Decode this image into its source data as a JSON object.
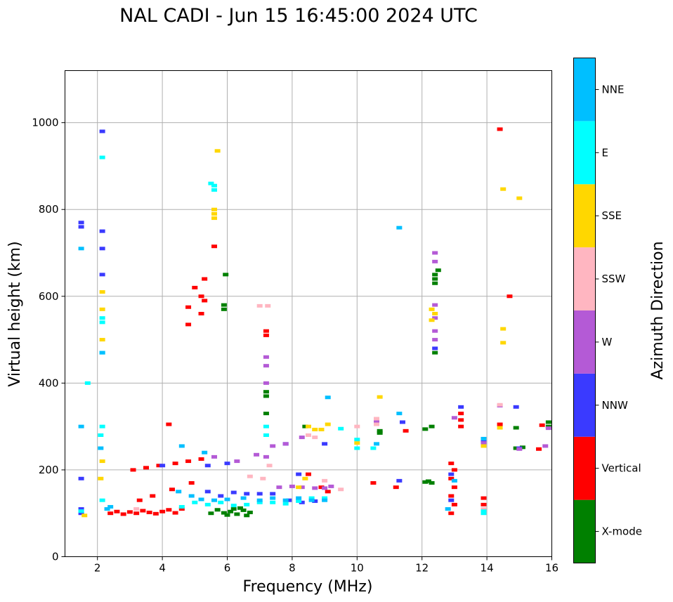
{
  "chart_data": {
    "type": "scatter",
    "title": "NAL CADI - Jun 15 16:45:00 2024 UTC",
    "xlabel": "Frequency (MHz)",
    "ylabel": "Virtual height (km)",
    "xlim": [
      1,
      16
    ],
    "ylim": [
      0,
      1120
    ],
    "xticks": [
      2,
      4,
      6,
      8,
      10,
      12,
      14,
      16
    ],
    "yticks": [
      0,
      200,
      400,
      600,
      800,
      1000
    ],
    "grid": true,
    "colorbar": {
      "label": "Azimuth Direction",
      "categories": [
        {
          "name": "X-mode",
          "color": "#008000"
        },
        {
          "name": "Vertical",
          "color": "#ff0000"
        },
        {
          "name": "NNW",
          "color": "#3a3aff"
        },
        {
          "name": "W",
          "color": "#b45ad6"
        },
        {
          "name": "SSW",
          "color": "#ffb6c1"
        },
        {
          "name": "SSE",
          "color": "#ffd700"
        },
        {
          "name": "E",
          "color": "#00ffff"
        },
        {
          "name": "NNE",
          "color": "#00bfff"
        }
      ]
    },
    "series": [
      {
        "name": "X-mode",
        "points": [
          [
            5.9,
            101
          ],
          [
            6.1,
            104
          ],
          [
            6.3,
            98
          ],
          [
            6.5,
            107
          ],
          [
            6.7,
            102
          ],
          [
            6.2,
            110
          ],
          [
            6.0,
            96
          ],
          [
            6.4,
            112
          ],
          [
            5.7,
            108
          ],
          [
            5.5,
            100
          ],
          [
            6.6,
            95
          ],
          [
            12.1,
            172
          ],
          [
            12.2,
            174
          ],
          [
            12.3,
            170
          ],
          [
            12.1,
            294
          ],
          [
            12.3,
            300
          ],
          [
            12.4,
            630
          ],
          [
            12.4,
            640
          ],
          [
            12.4,
            650
          ],
          [
            12.5,
            660
          ],
          [
            12.4,
            470
          ],
          [
            15.9,
            300
          ],
          [
            15.9,
            310
          ],
          [
            14.9,
            297
          ],
          [
            14.9,
            250
          ],
          [
            15.1,
            252
          ],
          [
            5.9,
            570
          ],
          [
            5.9,
            580
          ],
          [
            5.95,
            650
          ],
          [
            7.2,
            380
          ],
          [
            7.2,
            370
          ],
          [
            7.2,
            330
          ],
          [
            8.4,
            300
          ],
          [
            10.7,
            290
          ],
          [
            10.7,
            285
          ]
        ]
      },
      {
        "name": "Vertical",
        "points": [
          [
            2.4,
            100
          ],
          [
            2.6,
            104
          ],
          [
            2.8,
            98
          ],
          [
            3.0,
            103
          ],
          [
            3.2,
            100
          ],
          [
            3.4,
            106
          ],
          [
            3.6,
            102
          ],
          [
            3.8,
            99
          ],
          [
            4.0,
            104
          ],
          [
            4.2,
            108
          ],
          [
            4.4,
            101
          ],
          [
            4.6,
            110
          ],
          [
            3.1,
            200
          ],
          [
            3.5,
            205
          ],
          [
            3.9,
            210
          ],
          [
            4.4,
            215
          ],
          [
            4.8,
            220
          ],
          [
            5.2,
            225
          ],
          [
            3.3,
            130
          ],
          [
            3.7,
            140
          ],
          [
            4.3,
            155
          ],
          [
            4.9,
            170
          ],
          [
            5.2,
            600
          ],
          [
            5.0,
            620
          ],
          [
            4.8,
            575
          ],
          [
            4.8,
            535
          ],
          [
            5.2,
            560
          ],
          [
            5.3,
            590
          ],
          [
            5.3,
            640
          ],
          [
            5.6,
            715
          ],
          [
            7.2,
            510
          ],
          [
            7.2,
            520
          ],
          [
            12.9,
            100
          ],
          [
            13.0,
            120
          ],
          [
            12.9,
            140
          ],
          [
            13.0,
            160
          ],
          [
            12.9,
            180
          ],
          [
            13.0,
            200
          ],
          [
            12.9,
            215
          ],
          [
            13.2,
            300
          ],
          [
            13.2,
            315
          ],
          [
            13.2,
            330
          ],
          [
            14.4,
            305
          ],
          [
            14.4,
            985
          ],
          [
            14.7,
            600
          ],
          [
            13.9,
            135
          ],
          [
            13.9,
            120
          ],
          [
            8.5,
            190
          ],
          [
            8.9,
            160
          ],
          [
            9.1,
            150
          ],
          [
            10.5,
            170
          ],
          [
            11.2,
            160
          ],
          [
            11.5,
            290
          ],
          [
            15.6,
            248
          ],
          [
            15.7,
            303
          ],
          [
            4.2,
            305
          ]
        ]
      },
      {
        "name": "NNW",
        "points": [
          [
            1.5,
            100
          ],
          [
            1.5,
            110
          ],
          [
            1.5,
            180
          ],
          [
            1.5,
            760
          ],
          [
            1.5,
            770
          ],
          [
            2.15,
            650
          ],
          [
            2.15,
            710
          ],
          [
            2.15,
            750
          ],
          [
            2.15,
            980
          ],
          [
            5.4,
            150
          ],
          [
            5.8,
            140
          ],
          [
            6.2,
            148
          ],
          [
            6.6,
            145
          ],
          [
            7.0,
            145
          ],
          [
            7.4,
            145
          ],
          [
            7.9,
            130
          ],
          [
            8.3,
            125
          ],
          [
            8.7,
            128
          ],
          [
            9.0,
            260
          ],
          [
            8.2,
            190
          ],
          [
            7.8,
            260
          ],
          [
            6.0,
            215
          ],
          [
            5.4,
            210
          ],
          [
            4.0,
            210
          ],
          [
            12.4,
            480
          ],
          [
            12.9,
            130
          ],
          [
            12.9,
            190
          ],
          [
            13.2,
            345
          ],
          [
            14.9,
            345
          ],
          [
            15.0,
            250
          ],
          [
            13.9,
            264
          ],
          [
            11.3,
            175
          ],
          [
            11.4,
            310
          ]
        ]
      },
      {
        "name": "W",
        "points": [
          [
            12.4,
            700
          ],
          [
            12.4,
            680
          ],
          [
            12.4,
            580
          ],
          [
            12.4,
            550
          ],
          [
            12.4,
            520
          ],
          [
            12.4,
            500
          ],
          [
            7.6,
            160
          ],
          [
            8.0,
            162
          ],
          [
            8.3,
            160
          ],
          [
            8.7,
            158
          ],
          [
            9.0,
            158
          ],
          [
            8.3,
            275
          ],
          [
            7.2,
            230
          ],
          [
            6.3,
            220
          ],
          [
            6.9,
            235
          ],
          [
            5.6,
            230
          ],
          [
            7.4,
            255
          ],
          [
            7.8,
            260
          ],
          [
            7.2,
            460
          ],
          [
            7.2,
            440
          ],
          [
            7.2,
            400
          ],
          [
            14.4,
            348
          ],
          [
            15.8,
            255
          ],
          [
            15.9,
            296
          ],
          [
            15.0,
            248
          ],
          [
            13.9,
            262
          ],
          [
            9.2,
            162
          ],
          [
            10.6,
            310
          ],
          [
            13.0,
            320
          ]
        ]
      },
      {
        "name": "SSW",
        "points": [
          [
            10.6,
            318
          ],
          [
            10.6,
            305
          ],
          [
            10.0,
            300
          ],
          [
            9.0,
            175
          ],
          [
            8.5,
            280
          ],
          [
            8.7,
            275
          ],
          [
            7.3,
            210
          ],
          [
            7.1,
            180
          ],
          [
            6.7,
            185
          ],
          [
            3.2,
            110
          ],
          [
            13.9,
            110
          ],
          [
            14.4,
            350
          ],
          [
            9.5,
            155
          ],
          [
            7.0,
            578
          ],
          [
            7.25,
            578
          ]
        ]
      },
      {
        "name": "SSE",
        "points": [
          [
            8.5,
            300
          ],
          [
            8.7,
            293
          ],
          [
            8.9,
            293
          ],
          [
            9.1,
            305
          ],
          [
            10.0,
            262
          ],
          [
            10.7,
            368
          ],
          [
            8.4,
            180
          ],
          [
            8.2,
            160
          ],
          [
            14.4,
            297
          ],
          [
            14.5,
            525
          ],
          [
            14.5,
            493
          ],
          [
            14.5,
            847
          ],
          [
            15.0,
            826
          ],
          [
            12.3,
            570
          ],
          [
            12.4,
            560
          ],
          [
            12.3,
            545
          ],
          [
            5.6,
            790
          ],
          [
            5.6,
            800
          ],
          [
            5.6,
            780
          ],
          [
            5.7,
            935
          ],
          [
            2.15,
            610
          ],
          [
            2.15,
            570
          ],
          [
            2.15,
            500
          ],
          [
            2.15,
            220
          ],
          [
            2.1,
            180
          ],
          [
            1.6,
            95
          ],
          [
            13.9,
            255
          ]
        ]
      },
      {
        "name": "E",
        "points": [
          [
            2.15,
            920
          ],
          [
            2.15,
            550
          ],
          [
            2.15,
            540
          ],
          [
            2.15,
            470
          ],
          [
            2.15,
            300
          ],
          [
            2.1,
            280
          ],
          [
            2.15,
            130
          ],
          [
            1.5,
            105
          ],
          [
            1.7,
            400
          ],
          [
            5.5,
            860
          ],
          [
            5.6,
            845
          ],
          [
            5.6,
            855
          ],
          [
            4.6,
            115
          ],
          [
            5.0,
            125
          ],
          [
            5.4,
            120
          ],
          [
            5.8,
            125
          ],
          [
            6.2,
            118
          ],
          [
            6.6,
            120
          ],
          [
            7.0,
            125
          ],
          [
            7.4,
            125
          ],
          [
            7.8,
            122
          ],
          [
            8.2,
            128
          ],
          [
            8.6,
            135
          ],
          [
            9.0,
            135
          ],
          [
            10.0,
            270
          ],
          [
            10.0,
            250
          ],
          [
            10.5,
            250
          ],
          [
            13.9,
            105
          ],
          [
            13.9,
            100
          ],
          [
            9.5,
            295
          ],
          [
            7.2,
            300
          ],
          [
            7.2,
            280
          ]
        ]
      },
      {
        "name": "NNE",
        "points": [
          [
            1.5,
            300
          ],
          [
            1.5,
            710
          ],
          [
            2.15,
            470
          ],
          [
            2.1,
            250
          ],
          [
            4.5,
            150
          ],
          [
            4.9,
            140
          ],
          [
            5.2,
            132
          ],
          [
            5.6,
            130
          ],
          [
            6.0,
            132
          ],
          [
            6.5,
            135
          ],
          [
            7.0,
            130
          ],
          [
            7.4,
            135
          ],
          [
            7.8,
            130
          ],
          [
            8.2,
            135
          ],
          [
            8.6,
            130
          ],
          [
            9.0,
            130
          ],
          [
            4.6,
            255
          ],
          [
            5.3,
            240
          ],
          [
            11.3,
            758
          ],
          [
            11.3,
            330
          ],
          [
            9.1,
            367
          ],
          [
            13.9,
            272
          ],
          [
            13.0,
            175
          ],
          [
            10.6,
            260
          ],
          [
            12.8,
            110
          ],
          [
            2.3,
            110
          ],
          [
            2.4,
            115
          ]
        ]
      }
    ]
  }
}
